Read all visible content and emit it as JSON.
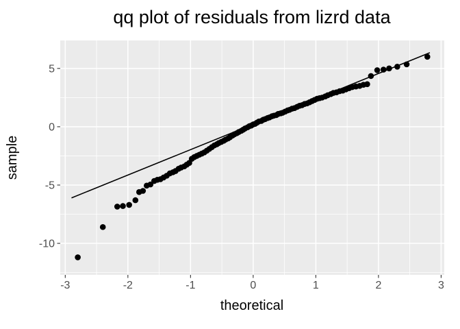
{
  "chart_data": {
    "type": "scatter",
    "title": "qq plot of residuals from lizrd data",
    "xlabel": "theoretical",
    "ylabel": "sample",
    "xlim": [
      -3.08,
      3.05
    ],
    "ylim": [
      -12.7,
      7.4
    ],
    "x_major_ticks": [
      -3,
      -2,
      -1,
      0,
      1,
      2,
      3
    ],
    "x_tick_labels": [
      "-3",
      "-2",
      "-1",
      "0",
      "1",
      "2",
      "3"
    ],
    "x_minor_ticks": [
      -2.5,
      -1.5,
      -0.5,
      0.5,
      1.5,
      2.5
    ],
    "y_major_ticks": [
      5,
      0,
      -5,
      -10
    ],
    "y_tick_labels": [
      "5",
      "0",
      "-5",
      "-10"
    ],
    "y_minor_ticks": [
      2.5,
      -2.5,
      -7.5,
      -12.5
    ],
    "panel_bg": "#EBEBEB",
    "grid_color": "#FFFFFF",
    "point_color": "#000000",
    "line_color": "#000000",
    "tick_mark_color": "#333333",
    "legend": "none",
    "grid": "on",
    "line": {
      "x1": -2.9,
      "y1": -6.1,
      "x2": 2.82,
      "y2": 6.35
    },
    "points": [
      [
        -2.8,
        -11.2
      ],
      [
        -2.4,
        -8.6
      ],
      [
        -2.17,
        -6.85
      ],
      [
        -2.08,
        -6.8
      ],
      [
        -1.98,
        -6.7
      ],
      [
        -1.88,
        -6.3
      ],
      [
        -1.82,
        -5.6
      ],
      [
        -1.76,
        -5.5
      ],
      [
        -1.7,
        -5.05
      ],
      [
        -1.64,
        -4.95
      ],
      [
        -1.58,
        -4.65
      ],
      [
        -1.53,
        -4.55
      ],
      [
        -1.48,
        -4.5
      ],
      [
        -1.43,
        -4.35
      ],
      [
        -1.38,
        -4.2
      ],
      [
        -1.33,
        -4.0
      ],
      [
        -1.28,
        -3.9
      ],
      [
        -1.24,
        -3.8
      ],
      [
        -1.19,
        -3.6
      ],
      [
        -1.15,
        -3.5
      ],
      [
        -1.1,
        -3.4
      ],
      [
        -1.06,
        -3.25
      ],
      [
        -1.02,
        -3.1
      ],
      [
        -0.98,
        -2.75
      ],
      [
        -0.94,
        -2.6
      ],
      [
        -0.9,
        -2.5
      ],
      [
        -0.86,
        -2.4
      ],
      [
        -0.82,
        -2.3
      ],
      [
        -0.78,
        -2.2
      ],
      [
        -0.74,
        -2.05
      ],
      [
        -0.7,
        -1.9
      ],
      [
        -0.66,
        -1.75
      ],
      [
        -0.62,
        -1.6
      ],
      [
        -0.58,
        -1.5
      ],
      [
        -0.55,
        -1.4
      ],
      [
        -0.51,
        -1.3
      ],
      [
        -0.47,
        -1.2
      ],
      [
        -0.44,
        -1.1
      ],
      [
        -0.4,
        -1.0
      ],
      [
        -0.37,
        -0.9
      ],
      [
        -0.33,
        -0.75
      ],
      [
        -0.3,
        -0.65
      ],
      [
        -0.26,
        -0.55
      ],
      [
        -0.23,
        -0.45
      ],
      [
        -0.19,
        -0.35
      ],
      [
        -0.16,
        -0.25
      ],
      [
        -0.13,
        -0.15
      ],
      [
        -0.09,
        -0.05
      ],
      [
        -0.06,
        0.05
      ],
      [
        -0.03,
        0.1
      ],
      [
        0.0,
        0.2
      ],
      [
        0.03,
        0.25
      ],
      [
        0.06,
        0.35
      ],
      [
        0.09,
        0.45
      ],
      [
        0.13,
        0.5
      ],
      [
        0.16,
        0.6
      ],
      [
        0.19,
        0.65
      ],
      [
        0.23,
        0.75
      ],
      [
        0.26,
        0.8
      ],
      [
        0.3,
        0.9
      ],
      [
        0.33,
        0.95
      ],
      [
        0.37,
        1.0
      ],
      [
        0.4,
        1.1
      ],
      [
        0.44,
        1.15
      ],
      [
        0.47,
        1.2
      ],
      [
        0.51,
        1.3
      ],
      [
        0.55,
        1.4
      ],
      [
        0.58,
        1.45
      ],
      [
        0.62,
        1.55
      ],
      [
        0.66,
        1.6
      ],
      [
        0.7,
        1.7
      ],
      [
        0.74,
        1.8
      ],
      [
        0.78,
        1.85
      ],
      [
        0.82,
        1.95
      ],
      [
        0.86,
        2.0
      ],
      [
        0.9,
        2.1
      ],
      [
        0.94,
        2.2
      ],
      [
        0.98,
        2.3
      ],
      [
        1.02,
        2.4
      ],
      [
        1.06,
        2.45
      ],
      [
        1.1,
        2.5
      ],
      [
        1.15,
        2.6
      ],
      [
        1.19,
        2.7
      ],
      [
        1.24,
        2.8
      ],
      [
        1.28,
        2.9
      ],
      [
        1.33,
        2.95
      ],
      [
        1.38,
        3.05
      ],
      [
        1.43,
        3.1
      ],
      [
        1.48,
        3.2
      ],
      [
        1.53,
        3.3
      ],
      [
        1.58,
        3.4
      ],
      [
        1.64,
        3.45
      ],
      [
        1.7,
        3.5
      ],
      [
        1.76,
        3.6
      ],
      [
        1.82,
        3.65
      ],
      [
        1.88,
        4.35
      ],
      [
        1.98,
        4.85
      ],
      [
        2.08,
        4.9
      ],
      [
        2.17,
        5.0
      ],
      [
        2.3,
        5.15
      ],
      [
        2.45,
        5.35
      ],
      [
        2.78,
        6.0
      ]
    ]
  }
}
